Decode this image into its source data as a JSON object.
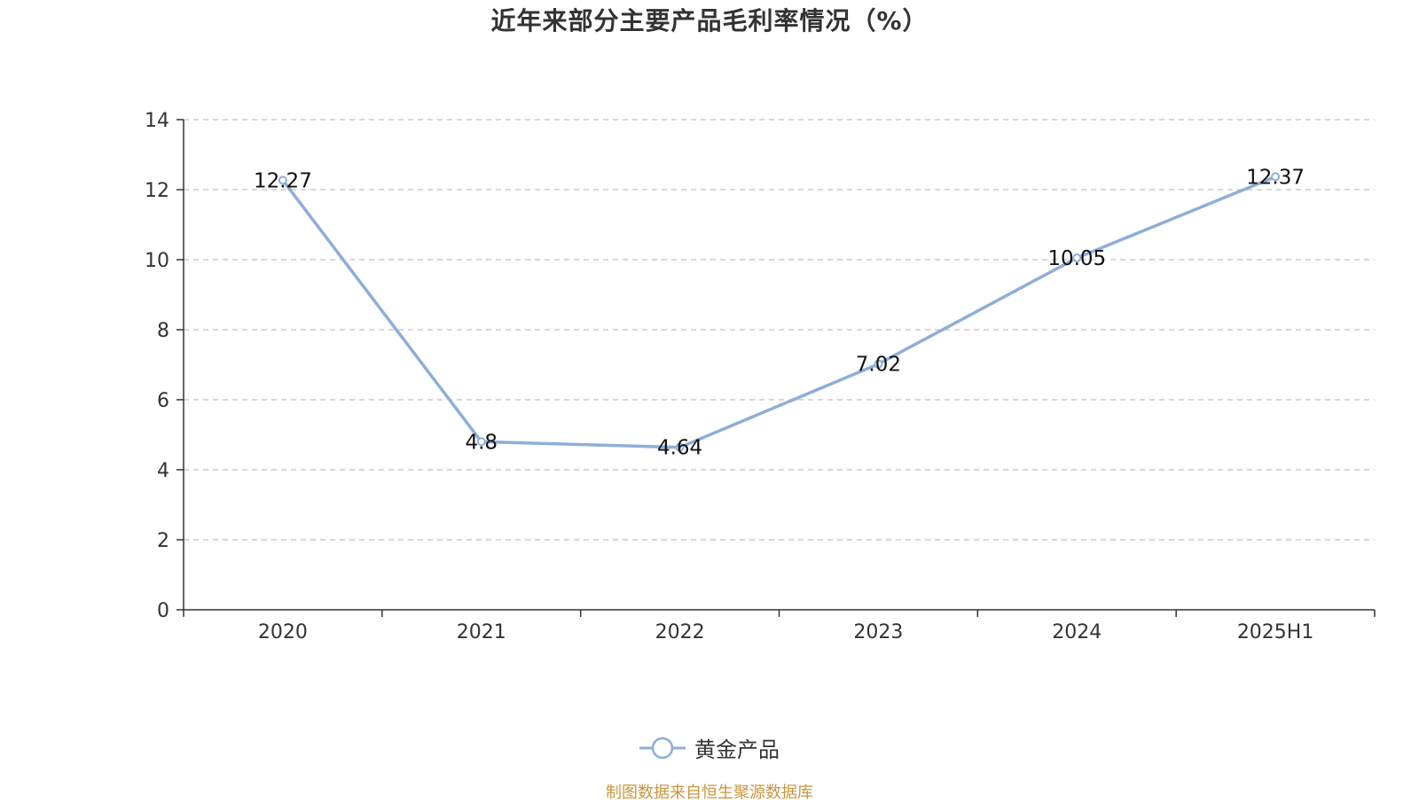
{
  "chart_data": {
    "type": "line",
    "title": "近年来部分主要产品毛利率情况（%）",
    "categories": [
      "2020",
      "2021",
      "2022",
      "2023",
      "2024",
      "2025H1"
    ],
    "series": [
      {
        "name": "黄金产品",
        "values": [
          12.27,
          4.8,
          4.64,
          7.02,
          10.05,
          12.37
        ],
        "color": "#8eaed8"
      }
    ],
    "ylim": [
      0,
      14
    ],
    "yticks": [
      0,
      2,
      4,
      6,
      8,
      10,
      12,
      14
    ],
    "grid": true,
    "legend_position": "bottom"
  },
  "source_note": "制图数据来自恒生聚源数据库"
}
